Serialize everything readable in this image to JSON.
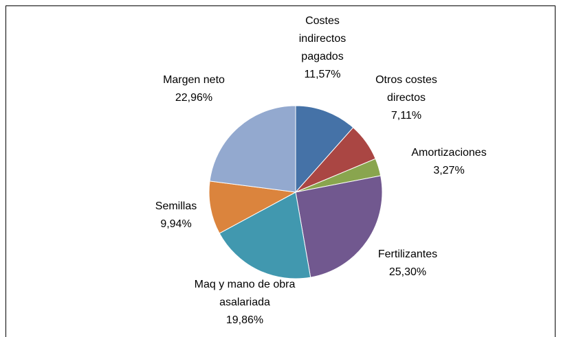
{
  "chart_data": {
    "type": "pie",
    "categories": [
      "Costes indirectos pagados",
      "Otros costes directos",
      "Amortizaciones",
      "Fertilizantes",
      "Maq y mano de obra asalariada",
      "Semillas",
      "Margen neto"
    ],
    "values": [
      11.57,
      7.11,
      3.27,
      25.3,
      19.86,
      9.94,
      22.96
    ],
    "value_labels": [
      "11,57%",
      "7,11%",
      "3,27%",
      "25,30%",
      "19,86%",
      "9,94%",
      "22,96%"
    ],
    "colors": [
      "#4572a7",
      "#aa4643",
      "#89a54e",
      "#71588f",
      "#4198af",
      "#db843d",
      "#93a9cf"
    ]
  }
}
